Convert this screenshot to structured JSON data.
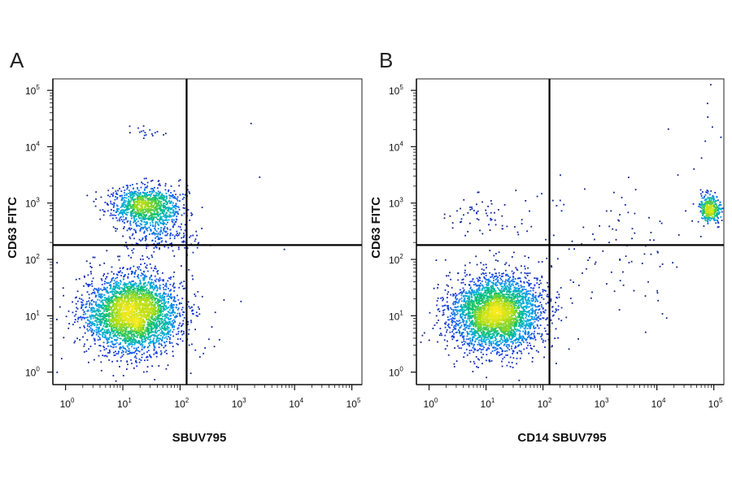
{
  "chart_data": [
    {
      "type": "scatter",
      "panel_label": "A",
      "xlabel": "SBUV795",
      "ylabel": "CD63 FITC",
      "scale": "log",
      "xlim": [
        0.6,
        150000
      ],
      "ylim": [
        0.6,
        160000
      ],
      "x_ticks": [
        {
          "base": "10",
          "exp": "0"
        },
        {
          "base": "10",
          "exp": "1"
        },
        {
          "base": "10",
          "exp": "2"
        },
        {
          "base": "10",
          "exp": "3"
        },
        {
          "base": "10",
          "exp": "4"
        },
        {
          "base": "10",
          "exp": "5"
        }
      ],
      "y_ticks": [
        {
          "base": "10",
          "exp": "0"
        },
        {
          "base": "10",
          "exp": "1"
        },
        {
          "base": "10",
          "exp": "2"
        },
        {
          "base": "10",
          "exp": "3"
        },
        {
          "base": "10",
          "exp": "4"
        },
        {
          "base": "10",
          "exp": "5"
        }
      ],
      "gate_x": 130,
      "gate_y": 180,
      "populations": [
        {
          "center_x": 15,
          "center_y": 11,
          "spread_x_decades": 0.42,
          "spread_y_decades": 0.34,
          "count": 3400
        },
        {
          "center_x": 25,
          "center_y": 900,
          "spread_x_decades": 0.3,
          "spread_y_decades": 0.17,
          "count": 1000
        },
        {
          "center_x": 40,
          "center_y": 300,
          "spread_x_decades": 0.35,
          "spread_y_decades": 0.2,
          "count": 260
        },
        {
          "center_x": 25,
          "center_y": 18000,
          "spread_x_decades": 0.15,
          "spread_y_decades": 0.06,
          "count": 18
        },
        {
          "center_x": 3000,
          "center_y": 3000,
          "spread_x_decades": 1.2,
          "spread_y_decades": 1.2,
          "count": 6
        }
      ]
    },
    {
      "type": "scatter",
      "panel_label": "B",
      "xlabel": "CD14 SBUV795",
      "ylabel": "CD63 FITC",
      "scale": "log",
      "xlim": [
        0.6,
        150000
      ],
      "ylim": [
        0.6,
        160000
      ],
      "x_ticks": [
        {
          "base": "10",
          "exp": "0"
        },
        {
          "base": "10",
          "exp": "1"
        },
        {
          "base": "10",
          "exp": "2"
        },
        {
          "base": "10",
          "exp": "3"
        },
        {
          "base": "10",
          "exp": "4"
        },
        {
          "base": "10",
          "exp": "5"
        }
      ],
      "y_ticks": [
        {
          "base": "10",
          "exp": "0"
        },
        {
          "base": "10",
          "exp": "1"
        },
        {
          "base": "10",
          "exp": "2"
        },
        {
          "base": "10",
          "exp": "3"
        },
        {
          "base": "10",
          "exp": "4"
        },
        {
          "base": "10",
          "exp": "5"
        }
      ],
      "gate_x": 130,
      "gate_y": 180,
      "populations": [
        {
          "center_x": 15,
          "center_y": 11,
          "spread_x_decades": 0.4,
          "spread_y_decades": 0.33,
          "count": 3400
        },
        {
          "center_x": 85000,
          "center_y": 800,
          "spread_x_decades": 0.09,
          "spread_y_decades": 0.12,
          "count": 380
        },
        {
          "center_x": 1500,
          "center_y": 150,
          "spread_x_decades": 0.9,
          "spread_y_decades": 0.6,
          "count": 110
        },
        {
          "center_x": 8,
          "center_y": 700,
          "spread_x_decades": 0.45,
          "spread_y_decades": 0.2,
          "count": 60
        },
        {
          "center_x": 50000,
          "center_y": 20000,
          "spread_x_decades": 0.4,
          "spread_y_decades": 0.7,
          "count": 10
        }
      ]
    }
  ]
}
